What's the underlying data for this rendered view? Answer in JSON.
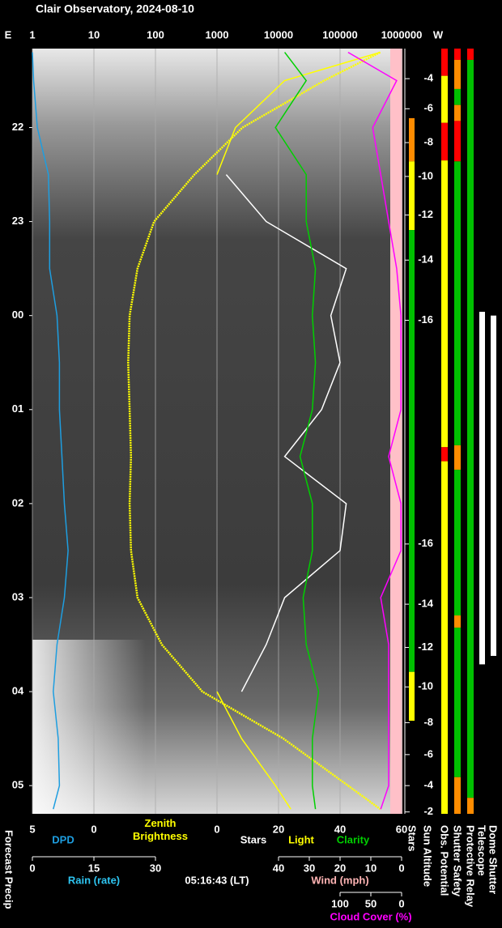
{
  "chart_data": {
    "type": "line",
    "title": "Clair Observatory, 2024-08-10",
    "current_time": "05:16:43 (LT)",
    "left_label": "Forecast Precip",
    "ylim": [
      21.16,
      29.3
    ],
    "yticks": [
      22,
      23,
      {
        "value": 24,
        "label": "00"
      },
      {
        "value": 25,
        "label": "01"
      },
      {
        "value": 26,
        "label": "02"
      },
      {
        "value": 27,
        "label": "03"
      },
      {
        "value": 28,
        "label": "04"
      },
      {
        "value": 29,
        "label": "05"
      }
    ],
    "top_axis": {
      "label_left": "E",
      "label_right": "W",
      "log": true,
      "xlim": [
        1,
        1000000
      ],
      "xticks": [
        1,
        10,
        100,
        1000,
        10000,
        100000,
        1000000
      ],
      "grid": true
    },
    "axes": {
      "dpd": {
        "xlim": [
          5,
          -25
        ],
        "xticks": [
          5,
          0
        ]
      },
      "sky": {
        "xlim": [
          -60,
          60
        ],
        "xticks": [
          0,
          20,
          40,
          60
        ]
      },
      "rain": {
        "name": "Rain (rate)",
        "color": "#2ec4f0",
        "xlim": [
          0,
          90
        ],
        "xticks": [
          0,
          15,
          30
        ]
      },
      "wind": {
        "name": "Wind (mph)",
        "color": "#ffb4b4",
        "xlim": [
          120,
          0
        ],
        "xticks": [
          40,
          30,
          20,
          10,
          0
        ]
      },
      "cloud": {
        "xlim": [
          600,
          0
        ],
        "xticks": [
          100,
          50,
          0
        ]
      }
    },
    "y": [
      21.2,
      21.5,
      22,
      22.5,
      23,
      23.5,
      24,
      24.5,
      25,
      25.5,
      26,
      26.5,
      27,
      27.5,
      28,
      28.5,
      29,
      29.25
    ],
    "series": [
      {
        "name": "DPD",
        "axis": "dpd",
        "color": "#1e9ee0",
        "values": [
          5,
          4.9,
          4.6,
          3.7,
          3.6,
          3.6,
          3.0,
          2.8,
          2.8,
          2.6,
          2.4,
          2.1,
          2.4,
          3.0,
          3.3,
          2.9,
          2.8,
          3.3
        ]
      },
      {
        "name": "Zenith Brightness",
        "axis": "top",
        "color": "#ffff00",
        "values": [
          450000,
          55000,
          2600,
          430,
          95,
          51,
          38,
          36,
          38,
          40,
          38,
          40,
          51,
          127,
          580,
          12000,
          135000,
          450000
        ]
      },
      {
        "name": "Stars",
        "axis": "sky",
        "color": "#ffffff",
        "values": [
          null,
          null,
          null,
          3,
          16,
          42,
          37,
          40,
          34,
          22,
          42,
          40,
          22,
          16,
          8,
          null,
          null,
          null
        ]
      },
      {
        "name": "Light",
        "axis": "sky",
        "color": "#ffff00",
        "values": [
          53,
          22,
          6,
          0,
          null,
          null,
          null,
          null,
          null,
          null,
          null,
          null,
          null,
          null,
          0,
          8,
          19,
          24
        ]
      },
      {
        "name": "Clarity",
        "axis": "sky",
        "color": "#00d000",
        "values": [
          22,
          29,
          19,
          29,
          29,
          32,
          31,
          32,
          31,
          27,
          31,
          31,
          28,
          29,
          33,
          31,
          31,
          32
        ]
      },
      {
        "name": "Cloud Cover (%)",
        "axis": "cloud",
        "color": "#ff00ff",
        "values": [
          87,
          8,
          47,
          34,
          21,
          8,
          1,
          1,
          1,
          21,
          1,
          1,
          34,
          21,
          21,
          21,
          21,
          34
        ]
      }
    ],
    "sun_altitude": {
      "name": "Sun Altitude",
      "y": [
        21.48,
        21.8,
        22.16,
        22.52,
        22.93,
        23.41,
        24.05,
        26.43,
        27.07,
        27.53,
        27.95,
        28.33,
        28.67,
        29.0,
        29.28
      ],
      "values": [
        -4,
        -6,
        -8,
        -10,
        -12,
        -14,
        -16,
        -16,
        -14,
        -12,
        -10,
        -8,
        -6,
        -4,
        -2
      ]
    },
    "status": [
      {
        "name": "Stars",
        "segments": [
          {
            "start": 21.9,
            "end": 22.36,
            "color": "#ff8c00"
          },
          {
            "start": 22.36,
            "end": 23.09,
            "color": "#ffff00"
          },
          {
            "start": 23.09,
            "end": 27.79,
            "color": "#00c000"
          },
          {
            "start": 27.79,
            "end": 28.31,
            "color": "#ffff00"
          }
        ]
      },
      {
        "name": "Obs. Potential",
        "segments": [
          {
            "start": 21.16,
            "end": 21.45,
            "color": "#ff0000"
          },
          {
            "start": 21.45,
            "end": 21.95,
            "color": "#ffff00"
          },
          {
            "start": 21.95,
            "end": 22.35,
            "color": "#ff0000"
          },
          {
            "start": 22.35,
            "end": 25.4,
            "color": "#ffff00"
          },
          {
            "start": 25.4,
            "end": 25.55,
            "color": "#ff0000"
          },
          {
            "start": 25.55,
            "end": 29.3,
            "color": "#ffff00"
          }
        ]
      },
      {
        "name": "Shutter Safety",
        "segments": [
          {
            "start": 21.16,
            "end": 21.28,
            "color": "#ff0000"
          },
          {
            "start": 21.28,
            "end": 21.59,
            "color": "#ff8c00"
          },
          {
            "start": 21.59,
            "end": 21.76,
            "color": "#00c000"
          },
          {
            "start": 21.76,
            "end": 21.93,
            "color": "#ff8c00"
          },
          {
            "start": 21.93,
            "end": 22.36,
            "color": "#ff0000"
          },
          {
            "start": 22.36,
            "end": 25.38,
            "color": "#00c000"
          },
          {
            "start": 25.38,
            "end": 25.64,
            "color": "#ff8c00"
          },
          {
            "start": 25.64,
            "end": 27.19,
            "color": "#00c000"
          },
          {
            "start": 27.19,
            "end": 27.32,
            "color": "#ff8c00"
          },
          {
            "start": 27.32,
            "end": 28.91,
            "color": "#00c000"
          },
          {
            "start": 28.91,
            "end": 29.3,
            "color": "#ff8c00"
          }
        ]
      },
      {
        "name": "Protective Relay",
        "segments": [
          {
            "start": 21.16,
            "end": 21.28,
            "color": "#ff0000"
          },
          {
            "start": 21.28,
            "end": 29.13,
            "color": "#00c000"
          },
          {
            "start": 29.13,
            "end": 29.3,
            "color": "#ff8c00"
          }
        ]
      },
      {
        "name": "Telescope",
        "segments": [
          {
            "start": 23.96,
            "end": 27.71,
            "color": "#ffffff"
          }
        ]
      },
      {
        "name": "Dome Shutter",
        "segments": [
          {
            "start": 24.0,
            "end": 27.62,
            "color": "#ffffff"
          }
        ]
      }
    ]
  }
}
